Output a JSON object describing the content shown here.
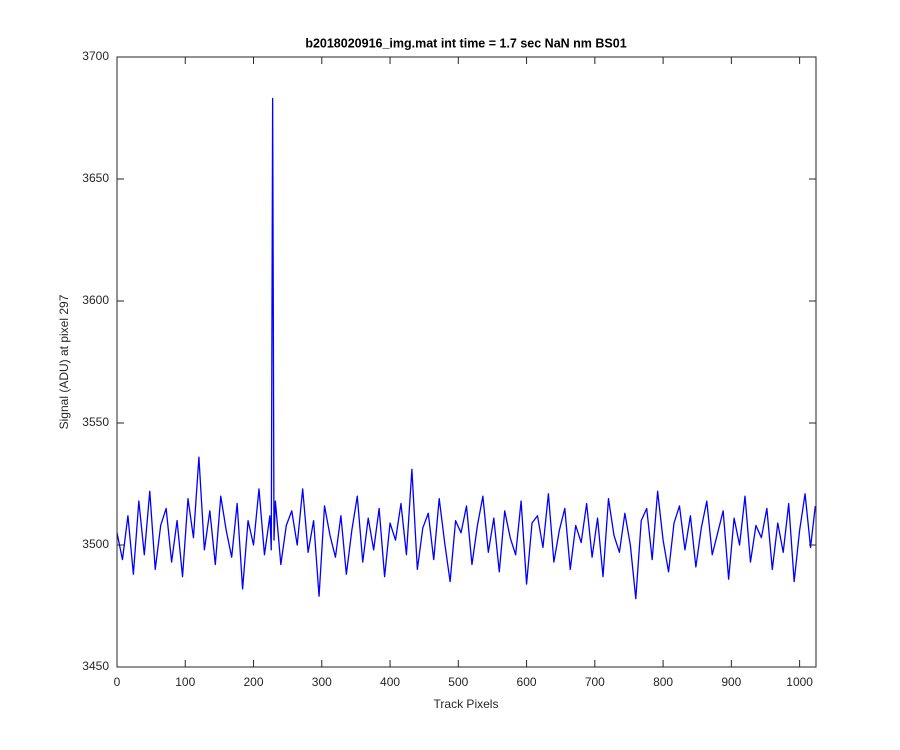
{
  "chart_data": {
    "type": "line",
    "title": "b2018020916_img.mat int time = 1.7 sec  NaN nm BS01",
    "x_label": "Track Pixels",
    "y_label": "Signal (ADU) at pixel 297",
    "x": [
      0,
      8,
      16,
      24,
      32,
      40,
      48,
      56,
      64,
      72,
      80,
      88,
      96,
      104,
      112,
      120,
      128,
      136,
      144,
      152,
      160,
      168,
      176,
      184,
      192,
      200,
      208,
      216,
      224,
      226,
      228,
      230,
      232,
      240,
      248,
      256,
      264,
      272,
      280,
      288,
      296,
      304,
      312,
      320,
      328,
      336,
      344,
      352,
      360,
      368,
      376,
      384,
      392,
      400,
      408,
      416,
      424,
      432,
      440,
      448,
      456,
      464,
      472,
      480,
      488,
      496,
      504,
      512,
      520,
      528,
      536,
      544,
      552,
      560,
      568,
      576,
      584,
      592,
      600,
      608,
      616,
      624,
      632,
      640,
      648,
      656,
      664,
      672,
      680,
      688,
      696,
      704,
      712,
      720,
      728,
      736,
      744,
      752,
      760,
      768,
      776,
      784,
      792,
      800,
      808,
      816,
      824,
      832,
      840,
      848,
      856,
      864,
      872,
      880,
      888,
      896,
      904,
      912,
      920,
      928,
      936,
      944,
      952,
      960,
      968,
      976,
      984,
      992,
      1000,
      1008,
      1016,
      1023
    ],
    "values": [
      3505,
      3494,
      3512,
      3488,
      3518,
      3496,
      3522,
      3490,
      3508,
      3515,
      3493,
      3510,
      3487,
      3519,
      3503,
      3536,
      3498,
      3514,
      3492,
      3520,
      3506,
      3495,
      3517,
      3482,
      3510,
      3500,
      3523,
      3496,
      3512,
      3498,
      3683,
      3502,
      3518,
      3492,
      3508,
      3514,
      3500,
      3523,
      3497,
      3510,
      3479,
      3516,
      3504,
      3495,
      3512,
      3488,
      3506,
      3520,
      3493,
      3511,
      3498,
      3515,
      3487,
      3509,
      3502,
      3517,
      3496,
      3531,
      3490,
      3507,
      3513,
      3494,
      3519,
      3501,
      3485,
      3510,
      3505,
      3516,
      3492,
      3508,
      3520,
      3497,
      3511,
      3489,
      3514,
      3503,
      3496,
      3518,
      3484,
      3509,
      3512,
      3499,
      3521,
      3493,
      3506,
      3515,
      3490,
      3508,
      3501,
      3517,
      3495,
      3511,
      3487,
      3519,
      3504,
      3497,
      3513,
      3500,
      3478,
      3510,
      3515,
      3494,
      3522,
      3502,
      3489,
      3509,
      3516,
      3498,
      3512,
      3491,
      3507,
      3518,
      3496,
      3505,
      3514,
      3486,
      3511,
      3500,
      3520,
      3493,
      3508,
      3503,
      3515,
      3490,
      3509,
      3497,
      3517,
      3485,
      3506,
      3521,
      3499,
      3516
    ],
    "color": "#0000ff",
    "xlim": [
      0,
      1024
    ],
    "xticks": [
      0,
      100,
      200,
      300,
      400,
      500,
      600,
      700,
      800,
      900,
      1000
    ],
    "ylim": [
      3450,
      3700
    ],
    "yticks": [
      3450,
      3500,
      3550,
      3600,
      3650,
      3700
    ],
    "grid": false
  }
}
